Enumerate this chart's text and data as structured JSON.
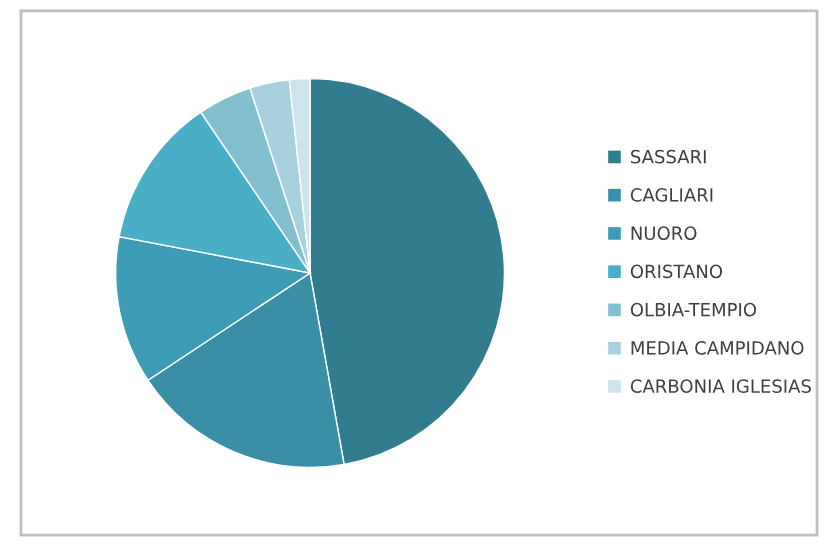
{
  "chart_data": {
    "type": "pie",
    "categories": [
      "SASSARI",
      "CAGLIARI",
      "NUORO",
      "ORISTANO",
      "OLBIA-TEMPIO",
      "MEDIA CAMPIDANO",
      "CARBONIA IGLESIAS"
    ],
    "values": [
      47.2,
      18.5,
      12.3,
      12.5,
      4.5,
      3.3,
      1.7
    ],
    "colors": [
      "#317d8f",
      "#3a8fa6",
      "#3d9db6",
      "#4aaec6",
      "#84bfd0",
      "#a8d1df",
      "#cde4ed"
    ],
    "legend": "right"
  }
}
